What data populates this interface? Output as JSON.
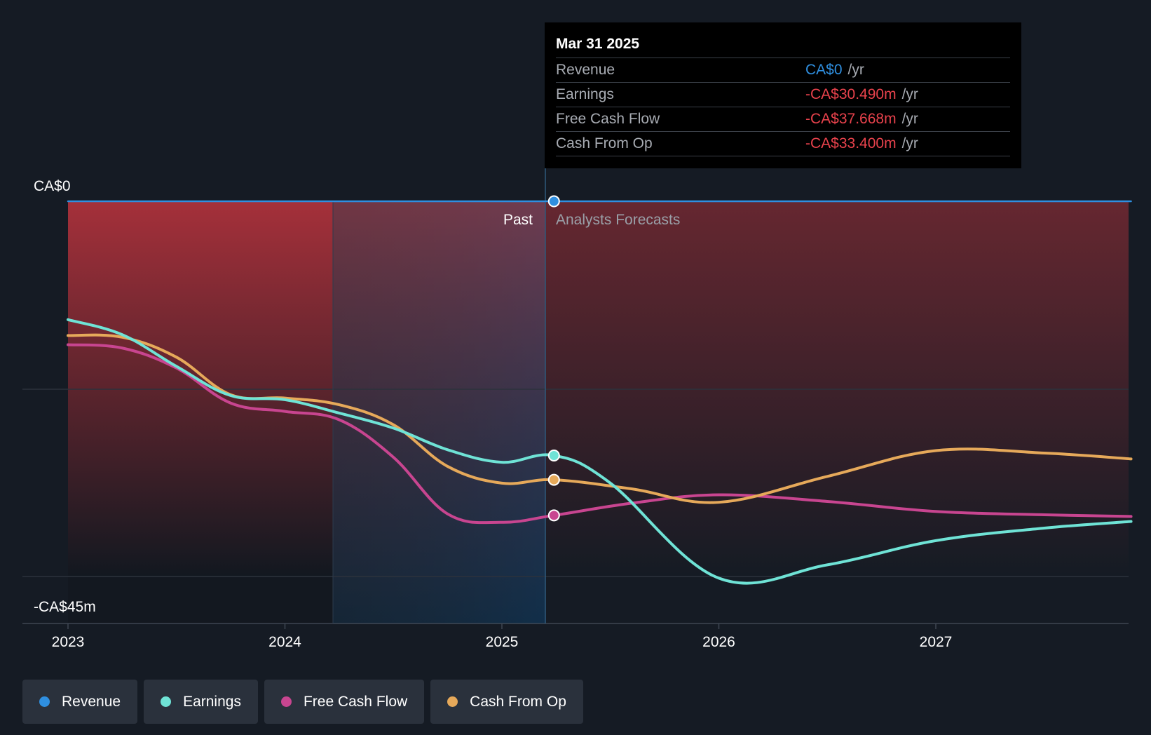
{
  "chart_data": {
    "type": "line",
    "y_axis": {
      "top_label": "CA$0",
      "bottom_label": "-CA$45m",
      "ylim": [
        -45,
        0
      ]
    },
    "x_axis": {
      "ticks": [
        "2023",
        "2024",
        "2025",
        "2026",
        "2027"
      ],
      "xlim": [
        2023,
        2027.9
      ]
    },
    "past_forecast_divider": 2025.24,
    "highlight_start": 2024.24,
    "regions": {
      "past": "Past",
      "forecast": "Analysts Forecasts"
    },
    "series": [
      {
        "key": "revenue",
        "name": "Revenue",
        "color": "#2f8fe0",
        "points": [
          [
            2023,
            0
          ],
          [
            2024,
            0
          ],
          [
            2025,
            0
          ],
          [
            2025.24,
            0
          ],
          [
            2026,
            0
          ],
          [
            2027,
            0
          ],
          [
            2027.9,
            0
          ]
        ]
      },
      {
        "key": "earnings",
        "name": "Earnings",
        "color": "#6fe3d6",
        "points": [
          [
            2023,
            -14.2
          ],
          [
            2023.25,
            -16.0
          ],
          [
            2023.5,
            -19.8
          ],
          [
            2023.75,
            -23.3
          ],
          [
            2024,
            -23.8
          ],
          [
            2024.25,
            -25.4
          ],
          [
            2024.5,
            -27.2
          ],
          [
            2024.75,
            -29.8
          ],
          [
            2025,
            -31.3
          ],
          [
            2025.24,
            -30.49
          ],
          [
            2025.5,
            -33.8
          ],
          [
            2026,
            -45.2
          ],
          [
            2026.5,
            -43.6
          ],
          [
            2027,
            -40.7
          ],
          [
            2027.5,
            -39.2
          ],
          [
            2027.9,
            -38.4
          ]
        ]
      },
      {
        "key": "fcf",
        "name": "Free Cash Flow",
        "color": "#c84590",
        "points": [
          [
            2023,
            -17.2
          ],
          [
            2023.25,
            -17.6
          ],
          [
            2023.5,
            -20.0
          ],
          [
            2023.75,
            -24.2
          ],
          [
            2024,
            -25.2
          ],
          [
            2024.25,
            -26.2
          ],
          [
            2024.5,
            -30.7
          ],
          [
            2024.75,
            -37.5
          ],
          [
            2025,
            -38.5
          ],
          [
            2025.24,
            -37.668
          ],
          [
            2025.6,
            -36.2
          ],
          [
            2026,
            -35.2
          ],
          [
            2026.5,
            -36.0
          ],
          [
            2027,
            -37.2
          ],
          [
            2027.5,
            -37.6
          ],
          [
            2027.9,
            -37.8
          ]
        ]
      },
      {
        "key": "cfo",
        "name": "Cash From Op",
        "color": "#e6a95a",
        "points": [
          [
            2023,
            -16.1
          ],
          [
            2023.25,
            -16.3
          ],
          [
            2023.5,
            -18.7
          ],
          [
            2023.75,
            -23.2
          ],
          [
            2024,
            -23.6
          ],
          [
            2024.25,
            -24.4
          ],
          [
            2024.5,
            -26.8
          ],
          [
            2024.75,
            -31.8
          ],
          [
            2025,
            -33.8
          ],
          [
            2025.24,
            -33.4
          ],
          [
            2025.6,
            -34.5
          ],
          [
            2026,
            -36.1
          ],
          [
            2026.5,
            -33.0
          ],
          [
            2027,
            -29.9
          ],
          [
            2027.5,
            -30.2
          ],
          [
            2027.9,
            -30.9
          ]
        ]
      }
    ]
  },
  "tooltip": {
    "date": "Mar 31 2025",
    "rows": [
      {
        "name": "Revenue",
        "value": "CA$0",
        "unit": "/yr",
        "color": "#2f8fe0"
      },
      {
        "name": "Earnings",
        "value": "-CA$30.490m",
        "unit": "/yr",
        "color": "#e8424c"
      },
      {
        "name": "Free Cash Flow",
        "value": "-CA$37.668m",
        "unit": "/yr",
        "color": "#e8424c"
      },
      {
        "name": "Cash From Op",
        "value": "-CA$33.400m",
        "unit": "/yr",
        "color": "#e8424c"
      }
    ]
  },
  "legend": [
    {
      "label": "Revenue",
      "color": "#2f8fe0"
    },
    {
      "label": "Earnings",
      "color": "#6fe3d6"
    },
    {
      "label": "Free Cash Flow",
      "color": "#c84590"
    },
    {
      "label": "Cash From Op",
      "color": "#e6a95a"
    }
  ]
}
